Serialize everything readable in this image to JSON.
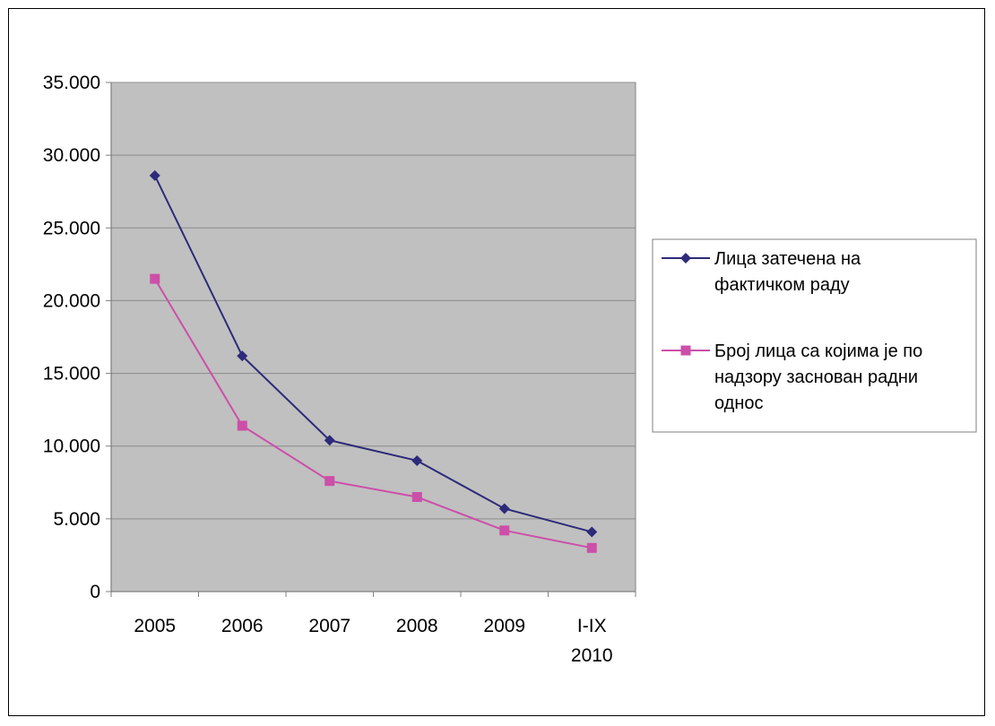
{
  "chart_data": {
    "type": "line",
    "categories": [
      "2005",
      "2006",
      "2007",
      "2008",
      "2009",
      "I-IX 2010"
    ],
    "category_lines": [
      [
        "2005"
      ],
      [
        "2006"
      ],
      [
        "2007"
      ],
      [
        "2008"
      ],
      [
        "2009"
      ],
      [
        "I-IX",
        "2010"
      ]
    ],
    "ylim": [
      0,
      35000
    ],
    "yticks": [
      0,
      5000,
      10000,
      15000,
      20000,
      25000,
      30000,
      35000
    ],
    "ytick_labels": [
      "0",
      "5.000",
      "10.000",
      "15.000",
      "20.000",
      "25.000",
      "30.000",
      "35.000"
    ],
    "grid": true,
    "plot_background": "#C0C0C0",
    "legend_position": "right",
    "series": [
      {
        "name": "Лица затечена на фактичком раду",
        "legend_lines": [
          "Лица затечена на",
          "фактичком раду"
        ],
        "color": "#2E2A7A",
        "marker": "diamond",
        "values": [
          28600,
          16200,
          10400,
          9000,
          5700,
          4100
        ]
      },
      {
        "name": "Број лица са којима је по надзору заснован радни однос",
        "legend_lines": [
          "Број лица са којима је по",
          "надзору заснован радни",
          "однос"
        ],
        "color": "#CC4FA8",
        "marker": "square",
        "values": [
          21500,
          11400,
          7600,
          6500,
          4200,
          3000
        ]
      }
    ]
  }
}
